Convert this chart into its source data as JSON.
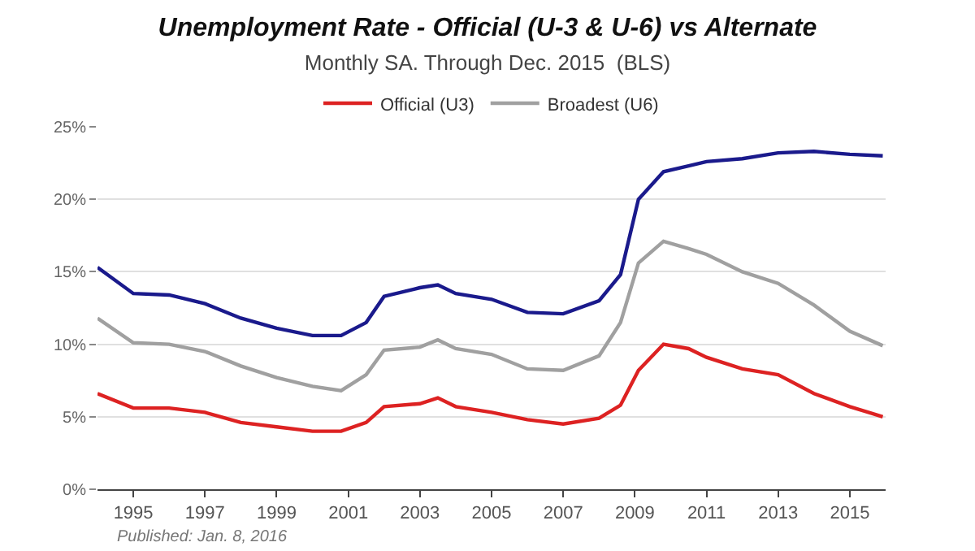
{
  "chart_data": {
    "type": "line",
    "title": "Unemployment Rate - Official (U-3 & U-6) vs Alternate",
    "subtitle": "Monthly SA. Through Dec. 2015  (BLS)",
    "x": [
      1994.0,
      1995.0,
      1996.0,
      1997.0,
      1998.0,
      1999.0,
      2000.0,
      2000.8,
      2001.5,
      2002.0,
      2003.0,
      2003.5,
      2004.0,
      2005.0,
      2006.0,
      2007.0,
      2008.0,
      2008.6,
      2009.1,
      2009.8,
      2010.5,
      2011.0,
      2012.0,
      2013.0,
      2014.0,
      2015.0,
      2015.92
    ],
    "series": [
      {
        "name": "Official (U3)",
        "color": "#dd2222",
        "values": [
          6.6,
          5.6,
          5.6,
          5.3,
          4.6,
          4.3,
          4.0,
          4.0,
          4.6,
          5.7,
          5.9,
          6.3,
          5.7,
          5.3,
          4.8,
          4.5,
          4.9,
          5.8,
          8.2,
          10.0,
          9.7,
          9.1,
          8.3,
          7.9,
          6.6,
          5.7,
          5.0
        ]
      },
      {
        "name": "Broadest (U6)",
        "color": "#a0a0a0",
        "values": [
          11.8,
          10.1,
          10.0,
          9.5,
          8.5,
          7.7,
          7.1,
          6.8,
          7.9,
          9.6,
          9.8,
          10.3,
          9.7,
          9.3,
          8.3,
          8.2,
          9.2,
          11.5,
          15.6,
          17.1,
          16.6,
          16.2,
          15.0,
          14.2,
          12.7,
          10.9,
          9.9
        ]
      },
      {
        "color": "#1a1a8c",
        "values": [
          15.3,
          13.5,
          13.4,
          12.8,
          11.8,
          11.1,
          10.6,
          10.6,
          11.5,
          13.3,
          13.9,
          14.1,
          13.5,
          13.1,
          12.2,
          12.1,
          13.0,
          14.8,
          20.0,
          21.9,
          22.3,
          22.6,
          22.8,
          23.2,
          23.3,
          23.1,
          23.0
        ]
      }
    ],
    "xlim": [
      1994,
      2016
    ],
    "xticks": [
      1995,
      1997,
      1999,
      2001,
      2003,
      2005,
      2007,
      2009,
      2011,
      2013,
      2015
    ],
    "ylim": [
      0,
      25
    ],
    "yticks": [
      {
        "value": 0,
        "label": "0%"
      },
      {
        "value": 5,
        "label": "5%"
      },
      {
        "value": 10,
        "label": "10%"
      },
      {
        "value": 15,
        "label": "15%"
      },
      {
        "value": 20,
        "label": "20%"
      },
      {
        "value": 25,
        "label": "25%"
      }
    ],
    "grid": "y",
    "legend": "top",
    "marker": "none",
    "line_style": "solid",
    "annotations": [
      "Published: Jan. 8, 2016"
    ]
  }
}
